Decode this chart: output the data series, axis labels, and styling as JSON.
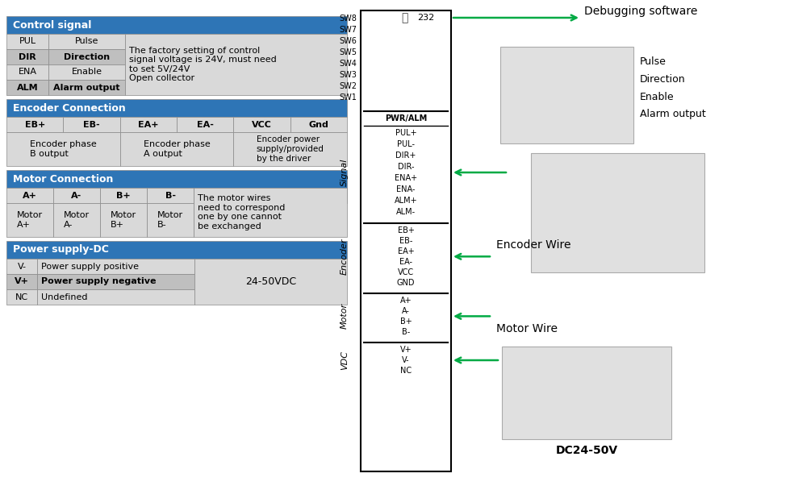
{
  "fig_width": 9.84,
  "fig_height": 6.13,
  "bg_color": "#ffffff",
  "blue_header": "#2E75B6",
  "light_gray": "#D9D9D9",
  "mid_gray": "#BFBFBF",
  "green_arrow": "#00AA44",
  "connector_labels_left": [
    "SW8",
    "SW7",
    "SW6",
    "SW5",
    "SW4",
    "SW3",
    "SW2",
    "SW1"
  ],
  "signal_items": [
    "PUL+",
    "PUL-",
    "DIR+",
    "DIR-",
    "ENA+",
    "ENA-",
    "ALM+",
    "ALM-"
  ],
  "encoder_items": [
    "EB+",
    "EB-",
    "EA+",
    "EA-",
    "VCC",
    "GND"
  ],
  "motor_items": [
    "A+",
    "A-",
    "B+",
    "B-"
  ],
  "vdc_items": [
    "V+",
    "V-",
    "NC"
  ],
  "right_labels": [
    "Pulse",
    "Direction",
    "Enable",
    "Alarm output"
  ],
  "dc_label": "DC24-50V"
}
